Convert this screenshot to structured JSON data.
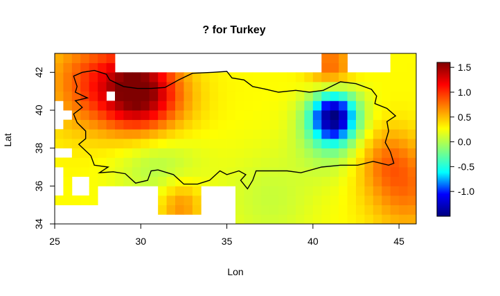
{
  "chart_data": {
    "type": "heatmap",
    "title": "? for Turkey",
    "xlabel": "Lon",
    "ylabel": "Lat",
    "xlim": [
      25,
      46
    ],
    "ylim": [
      34,
      43
    ],
    "x_ticks": [
      25,
      30,
      35,
      40,
      45
    ],
    "y_ticks": [
      34,
      36,
      38,
      40,
      42
    ],
    "colorbar": {
      "range": [
        -1.5,
        1.6
      ],
      "ticks": [
        1.5,
        1.0,
        0.5,
        0.0,
        -0.5,
        -1.0
      ],
      "tick_labels": [
        "1.5",
        "1.0",
        "0.5",
        "0.0",
        "-0.5",
        "-1.0"
      ]
    },
    "grid": false,
    "legend": "right",
    "colormap": [
      "#00007f",
      "#0000ff",
      "#00ffff",
      "#80ff80",
      "#ffff00",
      "#ff8000",
      "#ff0000",
      "#7f0000"
    ],
    "cell_size_deg": 0.5,
    "highlight_regions": [
      {
        "lon": [
          28.5,
          31.5
        ],
        "lat": [
          40.5,
          41.5
        ],
        "value": 1.5
      },
      {
        "lon": [
          26.5,
          29.0
        ],
        "lat": [
          41.0,
          42.5
        ],
        "value": 1.2
      },
      {
        "lon": [
          40.5,
          42.0
        ],
        "lat": [
          39.0,
          40.5
        ],
        "value": -1.3
      },
      {
        "lon": [
          39.5,
          43.0
        ],
        "lat": [
          38.0,
          41.0
        ],
        "value": -0.5
      }
    ]
  }
}
